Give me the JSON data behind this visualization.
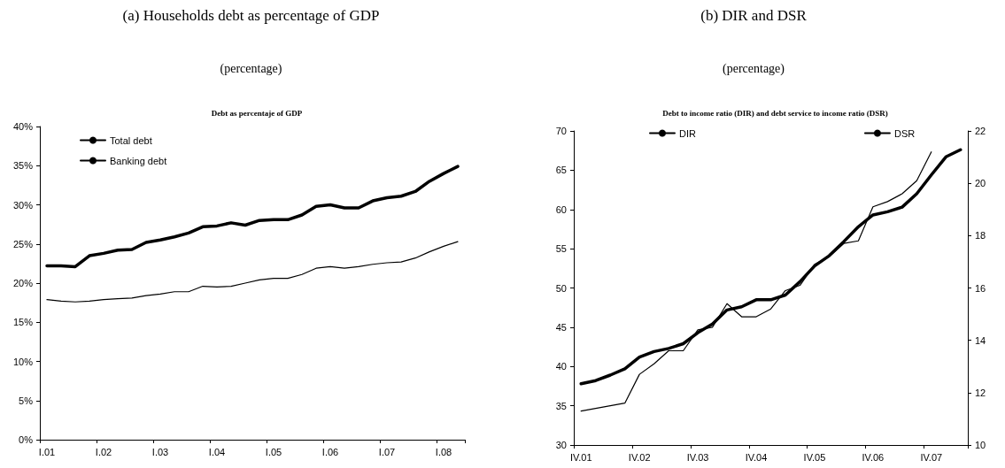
{
  "chart_data": [
    {
      "type": "line",
      "title": "(a) Households debt as percentage of GDP",
      "subtitle": "(percentage)",
      "annotations": [
        "Debt as percentaje of GDP"
      ],
      "categories": [
        "I.01",
        null,
        null,
        null,
        "I.02",
        null,
        null,
        null,
        "I.03",
        null,
        null,
        null,
        "I.04",
        null,
        null,
        null,
        "I.05",
        null,
        null,
        null,
        "I.06",
        null,
        null,
        null,
        "I.07",
        null,
        null,
        null,
        "I.08",
        null
      ],
      "series": [
        {
          "name": "Total debt",
          "color": "#000000",
          "values": [
            22.2,
            22.2,
            22.1,
            23.5,
            23.8,
            24.2,
            24.3,
            25.2,
            25.5,
            25.9,
            26.4,
            27.2,
            27.3,
            27.7,
            27.4,
            28.0,
            28.1,
            28.1,
            28.7,
            29.8,
            30.0,
            29.6,
            29.6,
            30.5,
            30.9,
            31.1,
            31.7,
            33.0,
            34.0,
            34.9
          ]
        },
        {
          "name": "Banking debt",
          "color": "#000000",
          "values": [
            17.9,
            17.7,
            17.6,
            17.7,
            17.9,
            18.0,
            18.1,
            18.4,
            18.6,
            18.9,
            18.9,
            19.6,
            19.5,
            19.6,
            20.0,
            20.4,
            20.6,
            20.6,
            21.1,
            21.9,
            22.1,
            21.9,
            22.1,
            22.4,
            22.6,
            22.7,
            23.2,
            24.0,
            24.7,
            25.3
          ]
        }
      ],
      "ylim": [
        0,
        40
      ],
      "yticks": [
        {
          "value": 0,
          "label": "0%"
        },
        {
          "value": 5,
          "label": "5%"
        },
        {
          "value": 10,
          "label": "10%"
        },
        {
          "value": 15,
          "label": "15%"
        },
        {
          "value": 20,
          "label": "20%"
        },
        {
          "value": 25,
          "label": "25%"
        },
        {
          "value": 30,
          "label": "30%"
        },
        {
          "value": 35,
          "label": "35%"
        },
        {
          "value": 40,
          "label": "40%"
        }
      ],
      "grid": false,
      "legend": "top left",
      "marker": "none"
    },
    {
      "type": "line",
      "title": "(b) DIR and DSR",
      "subtitle": "(percentage)",
      "annotations": [
        "Debt to income ratio (DIR) and debt service to income ratio (DSR)"
      ],
      "categories": [
        "IV.01",
        null,
        null,
        null,
        "IV.02",
        null,
        null,
        null,
        "IV.03",
        null,
        null,
        null,
        "IV.04",
        null,
        null,
        null,
        "IV.05",
        null,
        null,
        null,
        "IV.06",
        null,
        null,
        null,
        "IV.07",
        null,
        null
      ],
      "series": [
        {
          "name": "DIR",
          "color": "#000000",
          "values": [
            37.8,
            38.2,
            38.9,
            39.7,
            41.2,
            41.9,
            42.3,
            42.9,
            44.3,
            45.4,
            47.2,
            47.6,
            48.5,
            48.5,
            49.1,
            50.8,
            52.8,
            54.1,
            55.9,
            57.8,
            59.3,
            59.7,
            60.3,
            62.0,
            64.4,
            66.7,
            67.6
          ]
        },
        {
          "name": "DSR",
          "color": "#000000",
          "axis": "y2",
          "values": [
            11.3,
            11.4,
            11.5,
            11.6,
            12.7,
            13.1,
            13.6,
            13.6,
            14.4,
            14.5,
            15.4,
            14.9,
            14.9,
            15.2,
            15.9,
            16.1,
            16.9,
            17.2,
            17.7,
            17.8,
            19.1,
            19.3,
            19.6,
            20.1,
            21.2,
            null,
            null
          ]
        }
      ],
      "ylim": [
        30,
        70
      ],
      "yticks": [
        30,
        35,
        40,
        45,
        50,
        55,
        60,
        65,
        70
      ],
      "y2lim": [
        10,
        22
      ],
      "y2ticks": [
        10,
        12,
        14,
        16,
        18,
        20,
        22
      ],
      "grid": false,
      "legend": "top",
      "marker": "none"
    }
  ]
}
